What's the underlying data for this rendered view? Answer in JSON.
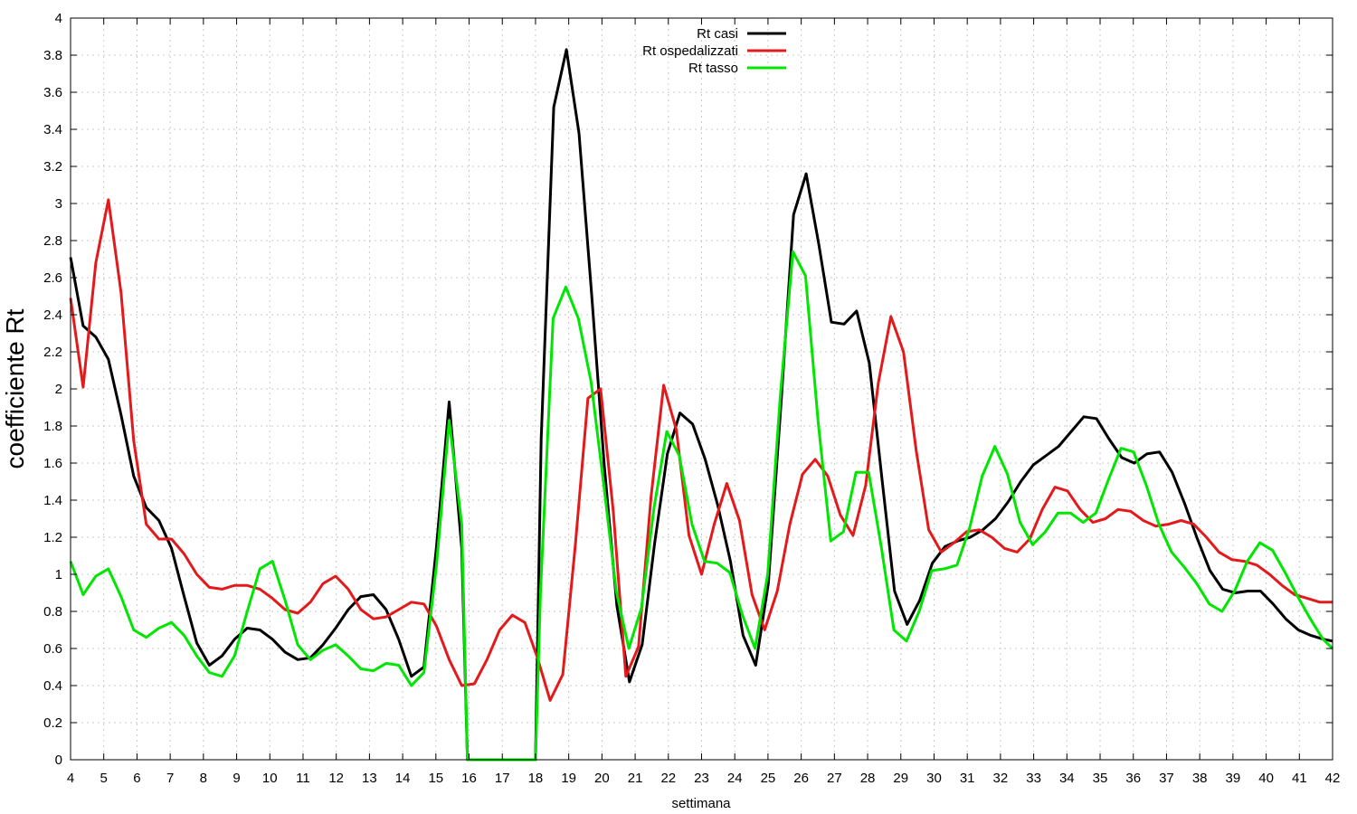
{
  "chart_data": {
    "type": "line",
    "xlabel": "settimana",
    "ylabel": "coefficiente Rt",
    "xlim": [
      4,
      42
    ],
    "ylim": [
      0,
      4
    ],
    "grid": true,
    "legend_position": "top-center",
    "x_ticks": [
      4,
      5,
      6,
      7,
      8,
      9,
      10,
      11,
      12,
      13,
      14,
      15,
      16,
      17,
      18,
      19,
      20,
      21,
      22,
      23,
      24,
      25,
      26,
      27,
      28,
      29,
      30,
      31,
      32,
      33,
      34,
      35,
      36,
      37,
      38,
      39,
      40,
      41,
      42
    ],
    "y_ticks": [
      0,
      0.2,
      0.4,
      0.6,
      0.8,
      1,
      1.2,
      1.4,
      1.6,
      1.8,
      2,
      2.2,
      2.4,
      2.6,
      2.8,
      3,
      3.2,
      3.4,
      3.6,
      3.8,
      4
    ],
    "series": [
      {
        "name": "Rt casi",
        "color": "#000000",
        "points": [
          [
            4,
            2.71
          ],
          [
            4.38,
            2.34
          ],
          [
            4.76,
            2.28
          ],
          [
            5.14,
            2.16
          ],
          [
            5.52,
            1.86
          ],
          [
            5.9,
            1.53
          ],
          [
            6.28,
            1.36
          ],
          [
            6.66,
            1.29
          ],
          [
            7.04,
            1.14
          ],
          [
            7.42,
            0.88
          ],
          [
            7.8,
            0.63
          ],
          [
            8.18,
            0.51
          ],
          [
            8.56,
            0.56
          ],
          [
            8.94,
            0.65
          ],
          [
            9.32,
            0.71
          ],
          [
            9.7,
            0.7
          ],
          [
            10.08,
            0.65
          ],
          [
            10.46,
            0.58
          ],
          [
            10.84,
            0.54
          ],
          [
            11.22,
            0.55
          ],
          [
            11.6,
            0.62
          ],
          [
            11.98,
            0.71
          ],
          [
            12.36,
            0.81
          ],
          [
            12.74,
            0.88
          ],
          [
            13.12,
            0.89
          ],
          [
            13.5,
            0.81
          ],
          [
            13.88,
            0.65
          ],
          [
            14.26,
            0.45
          ],
          [
            14.64,
            0.5
          ],
          [
            15.02,
            1.15
          ],
          [
            15.4,
            1.93
          ],
          [
            15.78,
            1.14
          ],
          [
            15.95,
            0.0
          ],
          [
            18.0,
            0.0
          ],
          [
            18.17,
            1.73
          ],
          [
            18.55,
            3.52
          ],
          [
            18.93,
            3.83
          ],
          [
            19.31,
            3.38
          ],
          [
            19.69,
            2.51
          ],
          [
            20.07,
            1.59
          ],
          [
            20.45,
            0.83
          ],
          [
            20.83,
            0.42
          ],
          [
            21.21,
            0.62
          ],
          [
            21.59,
            1.17
          ],
          [
            21.97,
            1.65
          ],
          [
            22.35,
            1.87
          ],
          [
            22.73,
            1.81
          ],
          [
            23.11,
            1.62
          ],
          [
            23.49,
            1.37
          ],
          [
            23.87,
            1.07
          ],
          [
            24.25,
            0.67
          ],
          [
            24.63,
            0.51
          ],
          [
            25.01,
            0.95
          ],
          [
            25.39,
            1.91
          ],
          [
            25.77,
            2.94
          ],
          [
            26.15,
            3.16
          ],
          [
            26.53,
            2.78
          ],
          [
            26.91,
            2.36
          ],
          [
            27.29,
            2.35
          ],
          [
            27.67,
            2.42
          ],
          [
            28.05,
            2.14
          ],
          [
            28.43,
            1.52
          ],
          [
            28.81,
            0.91
          ],
          [
            29.19,
            0.73
          ],
          [
            29.57,
            0.86
          ],
          [
            29.95,
            1.06
          ],
          [
            30.33,
            1.15
          ],
          [
            30.71,
            1.18
          ],
          [
            31.09,
            1.2
          ],
          [
            31.47,
            1.24
          ],
          [
            31.85,
            1.3
          ],
          [
            32.23,
            1.39
          ],
          [
            32.61,
            1.5
          ],
          [
            32.99,
            1.59
          ],
          [
            33.37,
            1.64
          ],
          [
            33.75,
            1.69
          ],
          [
            34.13,
            1.77
          ],
          [
            34.51,
            1.85
          ],
          [
            34.89,
            1.84
          ],
          [
            35.27,
            1.73
          ],
          [
            35.65,
            1.63
          ],
          [
            36.03,
            1.6
          ],
          [
            36.41,
            1.65
          ],
          [
            36.79,
            1.66
          ],
          [
            37.17,
            1.55
          ],
          [
            37.55,
            1.38
          ],
          [
            37.93,
            1.19
          ],
          [
            38.31,
            1.02
          ],
          [
            38.69,
            0.92
          ],
          [
            39.07,
            0.9
          ],
          [
            39.45,
            0.91
          ],
          [
            39.83,
            0.91
          ],
          [
            40.21,
            0.84
          ],
          [
            40.59,
            0.76
          ],
          [
            40.97,
            0.7
          ],
          [
            41.35,
            0.67
          ],
          [
            41.73,
            0.65
          ],
          [
            42.0,
            0.64
          ]
        ]
      },
      {
        "name": "Rt ospedalizzati",
        "color": "#e31a1c",
        "points": [
          [
            4,
            2.49
          ],
          [
            4.38,
            2.01
          ],
          [
            4.76,
            2.68
          ],
          [
            5.14,
            3.02
          ],
          [
            5.52,
            2.52
          ],
          [
            5.9,
            1.72
          ],
          [
            6.28,
            1.27
          ],
          [
            6.66,
            1.19
          ],
          [
            7.04,
            1.19
          ],
          [
            7.42,
            1.11
          ],
          [
            7.8,
            1.0
          ],
          [
            8.18,
            0.93
          ],
          [
            8.56,
            0.92
          ],
          [
            8.94,
            0.94
          ],
          [
            9.32,
            0.94
          ],
          [
            9.7,
            0.92
          ],
          [
            10.08,
            0.87
          ],
          [
            10.46,
            0.81
          ],
          [
            10.84,
            0.79
          ],
          [
            11.22,
            0.85
          ],
          [
            11.6,
            0.95
          ],
          [
            11.98,
            0.99
          ],
          [
            12.36,
            0.92
          ],
          [
            12.74,
            0.81
          ],
          [
            13.12,
            0.76
          ],
          [
            13.5,
            0.77
          ],
          [
            13.88,
            0.81
          ],
          [
            14.26,
            0.85
          ],
          [
            14.64,
            0.84
          ],
          [
            15.02,
            0.72
          ],
          [
            15.4,
            0.54
          ],
          [
            15.78,
            0.4
          ],
          [
            16.16,
            0.41
          ],
          [
            16.54,
            0.54
          ],
          [
            16.92,
            0.7
          ],
          [
            17.3,
            0.78
          ],
          [
            17.68,
            0.74
          ],
          [
            18.06,
            0.55
          ],
          [
            18.44,
            0.32
          ],
          [
            18.82,
            0.46
          ],
          [
            19.2,
            1.16
          ],
          [
            19.58,
            1.95
          ],
          [
            19.96,
            2.0
          ],
          [
            20.34,
            1.34
          ],
          [
            20.72,
            0.45
          ],
          [
            21.1,
            0.61
          ],
          [
            21.48,
            1.42
          ],
          [
            21.86,
            2.02
          ],
          [
            22.24,
            1.78
          ],
          [
            22.62,
            1.21
          ],
          [
            23.0,
            1.0
          ],
          [
            23.38,
            1.27
          ],
          [
            23.76,
            1.49
          ],
          [
            24.14,
            1.29
          ],
          [
            24.52,
            0.89
          ],
          [
            24.9,
            0.7
          ],
          [
            25.28,
            0.91
          ],
          [
            25.66,
            1.27
          ],
          [
            26.04,
            1.54
          ],
          [
            26.42,
            1.62
          ],
          [
            26.8,
            1.53
          ],
          [
            27.18,
            1.32
          ],
          [
            27.56,
            1.21
          ],
          [
            27.94,
            1.48
          ],
          [
            28.32,
            2.03
          ],
          [
            28.7,
            2.39
          ],
          [
            29.08,
            2.2
          ],
          [
            29.46,
            1.67
          ],
          [
            29.84,
            1.24
          ],
          [
            30.22,
            1.12
          ],
          [
            30.6,
            1.17
          ],
          [
            30.98,
            1.23
          ],
          [
            31.36,
            1.24
          ],
          [
            31.74,
            1.2
          ],
          [
            32.12,
            1.14
          ],
          [
            32.5,
            1.12
          ],
          [
            32.88,
            1.19
          ],
          [
            33.26,
            1.35
          ],
          [
            33.64,
            1.47
          ],
          [
            34.02,
            1.45
          ],
          [
            34.4,
            1.35
          ],
          [
            34.78,
            1.28
          ],
          [
            35.16,
            1.3
          ],
          [
            35.54,
            1.35
          ],
          [
            35.92,
            1.34
          ],
          [
            36.3,
            1.29
          ],
          [
            36.68,
            1.26
          ],
          [
            37.06,
            1.27
          ],
          [
            37.44,
            1.29
          ],
          [
            37.82,
            1.27
          ],
          [
            38.2,
            1.2
          ],
          [
            38.58,
            1.12
          ],
          [
            38.96,
            1.08
          ],
          [
            39.34,
            1.07
          ],
          [
            39.72,
            1.05
          ],
          [
            40.1,
            1.0
          ],
          [
            40.48,
            0.94
          ],
          [
            40.86,
            0.89
          ],
          [
            41.24,
            0.87
          ],
          [
            41.62,
            0.85
          ],
          [
            42.0,
            0.85
          ]
        ]
      },
      {
        "name": "Rt tasso",
        "color": "#00e600",
        "points": [
          [
            4,
            1.07
          ],
          [
            4.38,
            0.89
          ],
          [
            4.76,
            0.99
          ],
          [
            5.14,
            1.03
          ],
          [
            5.52,
            0.88
          ],
          [
            5.9,
            0.7
          ],
          [
            6.28,
            0.66
          ],
          [
            6.66,
            0.71
          ],
          [
            7.04,
            0.74
          ],
          [
            7.42,
            0.67
          ],
          [
            7.8,
            0.56
          ],
          [
            8.18,
            0.47
          ],
          [
            8.56,
            0.45
          ],
          [
            8.94,
            0.56
          ],
          [
            9.32,
            0.8
          ],
          [
            9.7,
            1.03
          ],
          [
            10.08,
            1.07
          ],
          [
            10.46,
            0.86
          ],
          [
            10.84,
            0.62
          ],
          [
            11.22,
            0.54
          ],
          [
            11.6,
            0.59
          ],
          [
            11.98,
            0.62
          ],
          [
            12.36,
            0.56
          ],
          [
            12.74,
            0.49
          ],
          [
            13.12,
            0.48
          ],
          [
            13.5,
            0.52
          ],
          [
            13.88,
            0.51
          ],
          [
            14.26,
            0.4
          ],
          [
            14.64,
            0.47
          ],
          [
            15.02,
            1.05
          ],
          [
            15.4,
            1.83
          ],
          [
            15.78,
            1.27
          ],
          [
            15.95,
            0.0
          ],
          [
            18.0,
            0.0
          ],
          [
            18.15,
            0.91
          ],
          [
            18.53,
            2.38
          ],
          [
            18.91,
            2.55
          ],
          [
            19.29,
            2.38
          ],
          [
            19.67,
            2.04
          ],
          [
            20.05,
            1.49
          ],
          [
            20.43,
            0.91
          ],
          [
            20.81,
            0.6
          ],
          [
            21.19,
            0.82
          ],
          [
            21.57,
            1.36
          ],
          [
            21.95,
            1.77
          ],
          [
            22.33,
            1.64
          ],
          [
            22.71,
            1.27
          ],
          [
            23.09,
            1.07
          ],
          [
            23.47,
            1.06
          ],
          [
            23.85,
            1.01
          ],
          [
            24.23,
            0.78
          ],
          [
            24.61,
            0.6
          ],
          [
            24.99,
            1.0
          ],
          [
            25.37,
            1.96
          ],
          [
            25.75,
            2.74
          ],
          [
            26.13,
            2.61
          ],
          [
            26.51,
            1.82
          ],
          [
            26.89,
            1.18
          ],
          [
            27.27,
            1.23
          ],
          [
            27.65,
            1.55
          ],
          [
            28.03,
            1.55
          ],
          [
            28.41,
            1.15
          ],
          [
            28.79,
            0.7
          ],
          [
            29.17,
            0.64
          ],
          [
            29.55,
            0.8
          ],
          [
            29.93,
            1.02
          ],
          [
            30.31,
            1.03
          ],
          [
            30.69,
            1.05
          ],
          [
            31.07,
            1.25
          ],
          [
            31.45,
            1.53
          ],
          [
            31.83,
            1.69
          ],
          [
            32.21,
            1.54
          ],
          [
            32.59,
            1.28
          ],
          [
            32.97,
            1.16
          ],
          [
            33.35,
            1.23
          ],
          [
            33.73,
            1.33
          ],
          [
            34.11,
            1.33
          ],
          [
            34.49,
            1.28
          ],
          [
            34.87,
            1.33
          ],
          [
            35.25,
            1.51
          ],
          [
            35.63,
            1.68
          ],
          [
            36.01,
            1.66
          ],
          [
            36.39,
            1.48
          ],
          [
            36.77,
            1.27
          ],
          [
            37.15,
            1.12
          ],
          [
            37.53,
            1.04
          ],
          [
            37.91,
            0.95
          ],
          [
            38.29,
            0.84
          ],
          [
            38.67,
            0.8
          ],
          [
            39.05,
            0.91
          ],
          [
            39.43,
            1.07
          ],
          [
            39.81,
            1.17
          ],
          [
            40.19,
            1.13
          ],
          [
            40.57,
            1.01
          ],
          [
            40.95,
            0.88
          ],
          [
            41.33,
            0.76
          ],
          [
            41.71,
            0.65
          ],
          [
            42.0,
            0.6
          ]
        ]
      }
    ]
  }
}
